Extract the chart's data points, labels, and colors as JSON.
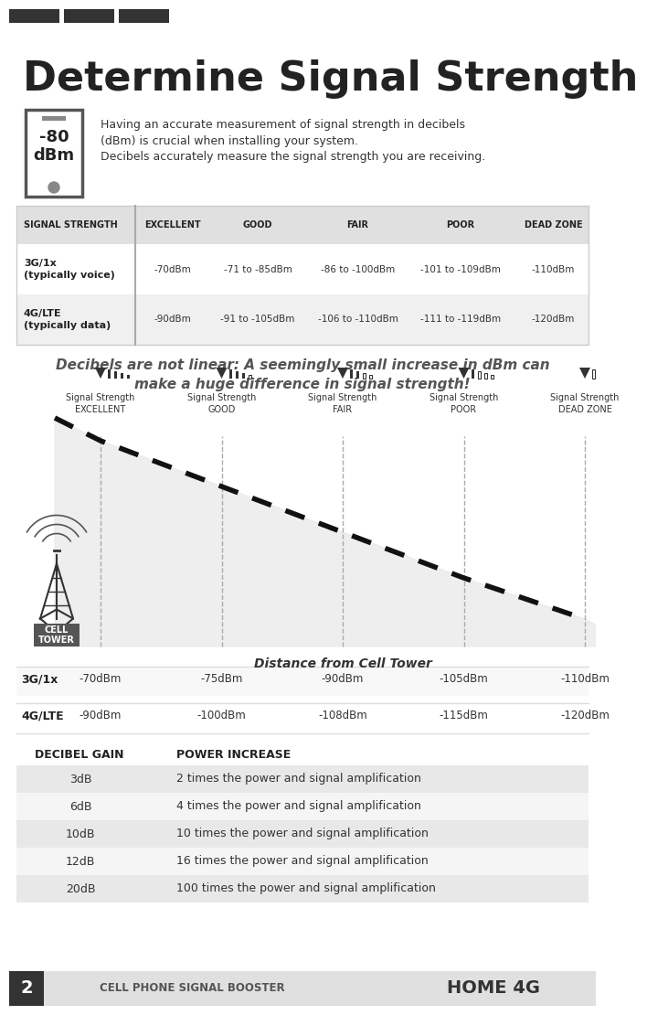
{
  "title": "Determine Signal Strength",
  "header_bar_color": "#333333",
  "bg_color": "#ffffff",
  "page_number": "2",
  "footer_left": "CELL PHONE SIGNAL BOOSTER",
  "footer_right": "HOME 4G",
  "phone_text": "-80\ndBm",
  "intro_text1": "Having an accurate measurement of signal strength in decibels\n(dBm) is crucial when installing your system.",
  "intro_text2": "Decibels accurately measure the signal strength you are receiving.",
  "table_header_bg": "#e0e0e0",
  "table_row1_bg": "#ffffff",
  "table_row2_bg": "#f5f5f5",
  "table_row3_bg": "#ffffff",
  "table_cols": [
    "SIGNAL STRENGTH",
    "EXCELLENT",
    "GOOD",
    "FAIR",
    "POOR",
    "DEAD ZONE"
  ],
  "table_row1": [
    "3G/1x\n(typically voice)",
    "-70dBm",
    "-71 to -85dBm",
    "-86 to -100dBm",
    "-101 to -109dBm",
    "-110dBm"
  ],
  "table_row2": [
    "4G/LTE\n(typically data)",
    "-90dBm",
    "-91 to -105dBm",
    "-106 to -110dBm",
    "-111 to -119dBm",
    "-120dBm"
  ],
  "italic_text": "Decibels are not linear: A seemingly small increase in dBm can\nmake a huge difference in signal strength!",
  "signal_labels": [
    "Signal Strength\nEXCELLENT",
    "Signal Strength\nGOOD",
    "Signal Strength\nFAIR",
    "Signal Strength\nPOOR",
    "Signal Strength\nDEAD ZONE"
  ],
  "chart_xlabel": "Distance from Cell Tower",
  "row_3g_label": "3G/1x",
  "row_4g_label": "4G/LTE",
  "row_3g_values": [
    "-70dBm",
    "-75dBm",
    "-90dBm",
    "-105dBm",
    "-110dBm"
  ],
  "row_4g_values": [
    "-90dBm",
    "-100dBm",
    "-108dBm",
    "-115dBm",
    "-120dBm"
  ],
  "decibel_table_header": [
    "DECIBEL GAIN",
    "POWER INCREASE"
  ],
  "decibel_rows": [
    [
      "3dB",
      "2 times the power and signal amplification"
    ],
    [
      "6dB",
      "4 times the power and signal amplification"
    ],
    [
      "10dB",
      "10 times the power and signal amplification"
    ],
    [
      "12dB",
      "16 times the power and signal amplification"
    ],
    [
      "20dB",
      "100 times the power and signal amplification"
    ]
  ],
  "decibel_row_colors": [
    "#e8e8e8",
    "#f5f5f5",
    "#e8e8e8",
    "#f5f5f5",
    "#e8e8e8"
  ],
  "cell_tower_label": "CELL\nTOWER",
  "cell_tower_bg": "#555555",
  "cell_tower_text_color": "#ffffff"
}
